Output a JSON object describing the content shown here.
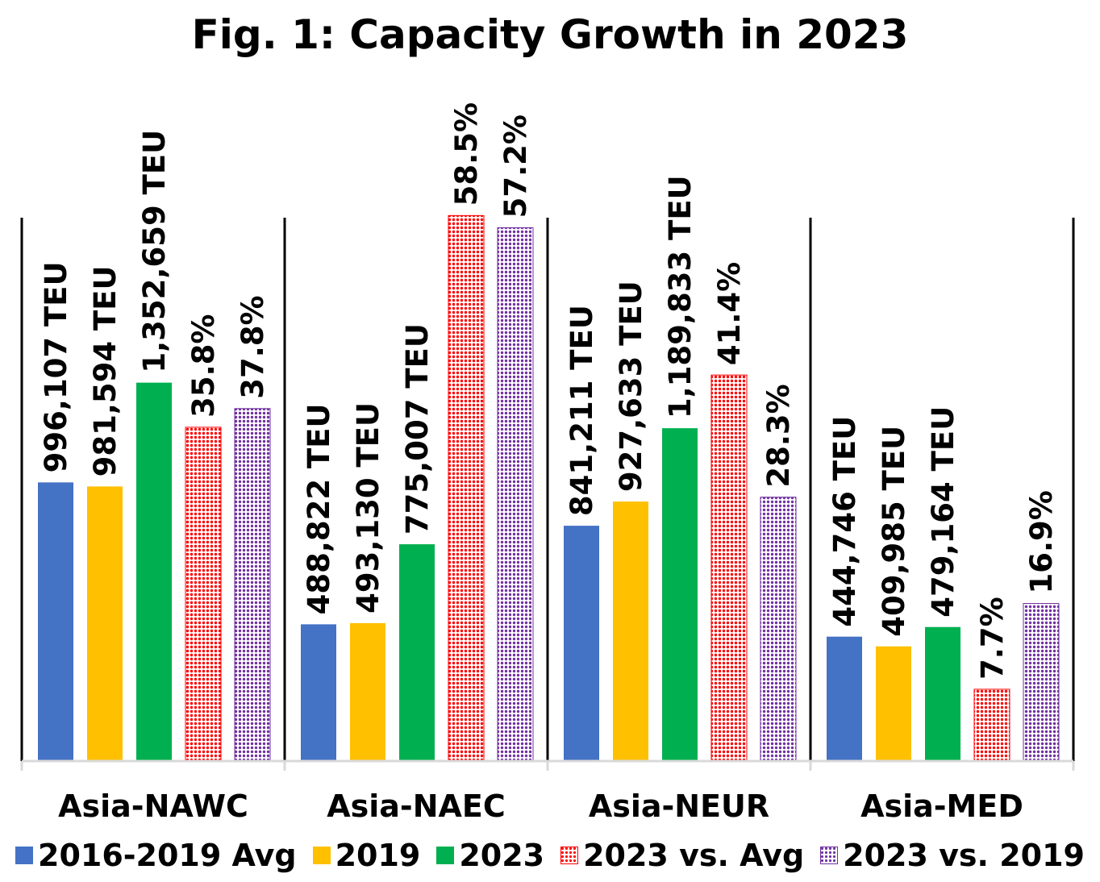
{
  "chart_data": {
    "type": "bar",
    "title": "Fig. 1: Capacity Growth in 2023",
    "categories": [
      "Asia-NAWC",
      "Asia-NAEC",
      "Asia-NEUR",
      "Asia-MED"
    ],
    "series": [
      {
        "name": "2016-2019 Avg",
        "color": "#4472C4",
        "pattern": "solid",
        "values": [
          996107,
          488822,
          841211,
          444746
        ],
        "labels": [
          "996,107 TEU",
          "488,822 TEU",
          "841,211 TEU",
          "444,746 TEU"
        ]
      },
      {
        "name": "2019",
        "color": "#FFC000",
        "pattern": "solid",
        "values": [
          981594,
          493130,
          927633,
          409985
        ],
        "labels": [
          "981,594 TEU",
          "493,130 TEU",
          "927,633 TEU",
          "409,985 TEU"
        ]
      },
      {
        "name": "2023",
        "color": "#00B050",
        "pattern": "solid",
        "values": [
          1352659,
          775007,
          1189833,
          479164
        ],
        "labels": [
          "1,352,659 TEU",
          "775,007 TEU",
          "1,189,833 TEU",
          "479,164 TEU"
        ]
      },
      {
        "name": "2023 vs. Avg",
        "color": "#FF0000",
        "pattern": "dotted",
        "values": [
          35.8,
          58.5,
          41.4,
          7.7
        ],
        "labels": [
          "35.8%",
          "58.5%",
          "41.4%",
          "7.7%"
        ]
      },
      {
        "name": "2023 vs. 2019",
        "color": "#7030A0",
        "pattern": "dotted",
        "values": [
          37.8,
          57.2,
          28.3,
          16.9
        ],
        "labels": [
          "37.8%",
          "57.2%",
          "28.3%",
          "16.9%"
        ]
      }
    ],
    "ylim_teu": [
      0,
      2000000
    ],
    "ylim_percent": [
      0,
      60
    ],
    "grid": false,
    "legend_position": "bottom"
  }
}
